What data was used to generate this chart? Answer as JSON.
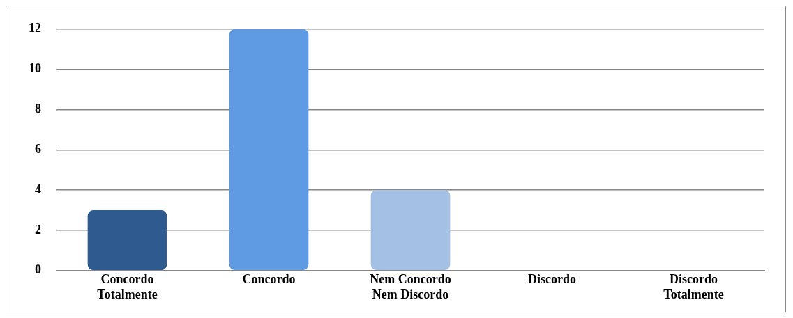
{
  "chart_data": {
    "type": "bar",
    "categories": [
      "Concordo Totalmente",
      "Concordo",
      "Nem Concordo Nem Discordo",
      "Discordo",
      "Discordo Totalmente"
    ],
    "values": [
      3,
      12,
      4,
      0,
      0
    ],
    "colors": [
      "#2e5a8f",
      "#5f9be2",
      "#a4c0e4",
      "#5f9be2",
      "#5f9be2"
    ],
    "ylim": [
      0,
      12
    ],
    "yticks": [
      0,
      2,
      4,
      6,
      8,
      10,
      12
    ],
    "grid": "y"
  }
}
